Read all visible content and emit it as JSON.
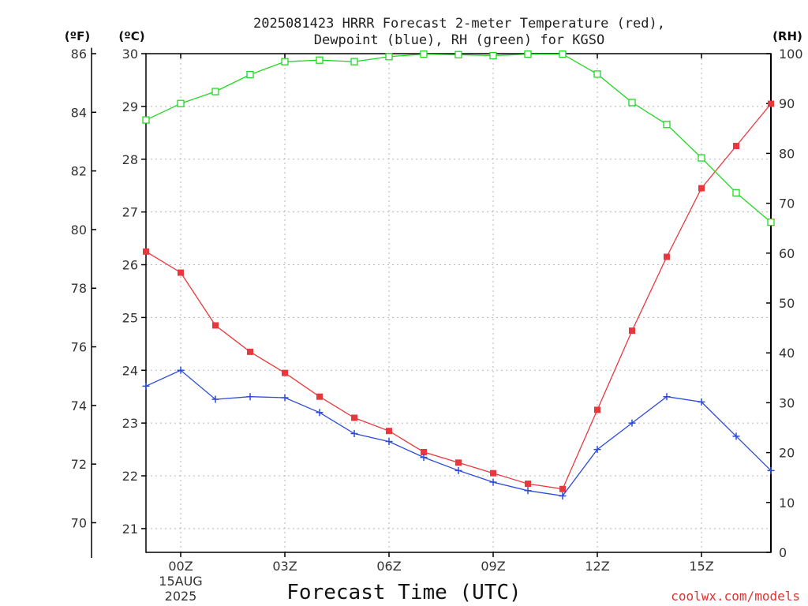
{
  "chart_data": {
    "type": "line",
    "title_line1": "2025081423 HRRR Forecast 2-meter Temperature (red),",
    "title_line2": "Dewpoint (blue), RH (green) for KGSO",
    "xlabel": "Forecast Time (UTC)",
    "credit": "coolwx.com/models",
    "axis_units": {
      "fahrenheit": "(ºF)",
      "celsius": "(ºC)",
      "rh": "(RH)"
    },
    "x_hours": [
      -1,
      0,
      1,
      2,
      3,
      4,
      5,
      6,
      7,
      8,
      9,
      10,
      11,
      12,
      13,
      14,
      15,
      16,
      17
    ],
    "x_ticks": [
      {
        "hour": 0,
        "label": "00Z",
        "date_line1": "15AUG",
        "date_line2": "2025"
      },
      {
        "hour": 3,
        "label": "03Z"
      },
      {
        "hour": 6,
        "label": "06Z"
      },
      {
        "hour": 9,
        "label": "09Z"
      },
      {
        "hour": 12,
        "label": "12Z"
      },
      {
        "hour": 15,
        "label": "15Z"
      }
    ],
    "celsius_ylim": [
      20.55,
      30.0
    ],
    "celsius_ticks": [
      21,
      22,
      23,
      24,
      25,
      26,
      27,
      28,
      29,
      30
    ],
    "fahrenheit_ticks": [
      70,
      72,
      74,
      76,
      78,
      80,
      82,
      84,
      86
    ],
    "rh_ylim": [
      0,
      100
    ],
    "rh_ticks": [
      0,
      10,
      20,
      30,
      40,
      50,
      60,
      70,
      80,
      90,
      100
    ],
    "series": [
      {
        "name": "Temperature",
        "axis": "celsius",
        "color": "#e8383d",
        "marker": "square",
        "values": [
          26.25,
          25.85,
          24.85,
          24.35,
          23.95,
          23.5,
          23.1,
          22.85,
          22.45,
          22.25,
          22.05,
          21.85,
          21.75,
          23.25,
          24.75,
          26.15,
          27.45,
          28.25,
          29.05
        ]
      },
      {
        "name": "Dewpoint",
        "axis": "celsius",
        "color": "#2b4bd8",
        "marker": "plus",
        "values": [
          23.7,
          24.0,
          23.45,
          23.5,
          23.48,
          23.2,
          22.8,
          22.65,
          22.35,
          22.1,
          21.88,
          21.72,
          21.62,
          22.5,
          23.0,
          23.5,
          23.4,
          22.75,
          22.1
        ]
      },
      {
        "name": "RH",
        "axis": "rh",
        "color": "#22d822",
        "marker": "open-square",
        "values": [
          86.7,
          90.0,
          92.4,
          95.8,
          98.4,
          98.7,
          98.4,
          99.4,
          99.9,
          99.8,
          99.6,
          99.9,
          99.9,
          95.9,
          90.2,
          85.8,
          79.1,
          72.1,
          66.2
        ]
      }
    ]
  }
}
